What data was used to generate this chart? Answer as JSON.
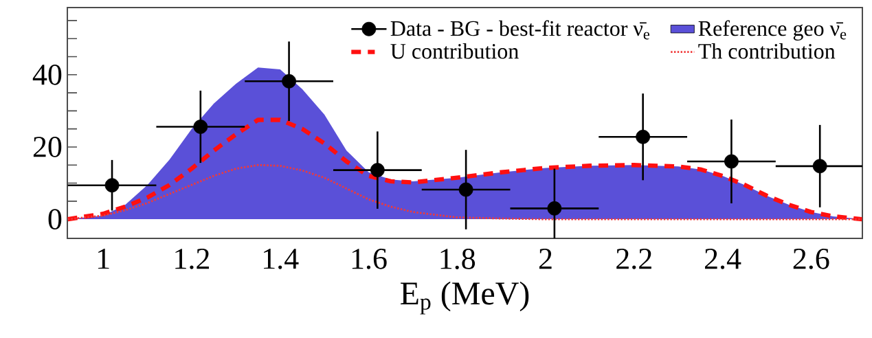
{
  "chart_data": {
    "type": "line",
    "xlabel": "E$_{p}$ (MeV)",
    "xlim": [
      0.919,
      2.716
    ],
    "ylim": [
      -5.3,
      58.6
    ],
    "xticks": [
      1,
      1.2,
      1.4,
      1.6,
      1.8,
      2,
      2.2,
      2.4,
      2.6
    ],
    "yticks": [
      0,
      {
        "value": 5,
        "label": null
      },
      {
        "value": 10,
        "label": null
      },
      {
        "value": 15,
        "label": null
      },
      20,
      {
        "value": 25,
        "label": null
      },
      {
        "value": 30,
        "label": null
      },
      {
        "value": 35,
        "label": null
      },
      40,
      {
        "value": 45,
        "label": null
      },
      {
        "value": 50,
        "label": null
      },
      {
        "value": 55,
        "label": null
      }
    ],
    "legend": "top right",
    "series": [
      {
        "name": "Data - BG - best-fit reactor ν̄$_{e}$",
        "type": "scatter",
        "color": "#000000",
        "marker": "circle",
        "x": [
          1.02,
          1.22,
          1.42,
          1.62,
          1.82,
          2.02,
          2.22,
          2.42,
          2.62
        ],
        "values": [
          9.4,
          25.6,
          38.2,
          13.6,
          8.2,
          3.0,
          22.8,
          16.0,
          14.7
        ],
        "errors": [
          7,
          10,
          11,
          10.7,
          11,
          11,
          12,
          11.6,
          11.4
        ],
        "xerrors": [
          0.1,
          0.1,
          0.1,
          0.1,
          0.1,
          0.1,
          0.1,
          0.1,
          0.1
        ]
      },
      {
        "name": "Reference geo ν̄$_{e}$",
        "type": "area",
        "color": "#5a50d8",
        "x": [
          0.92,
          1.0,
          1.05,
          1.1,
          1.15,
          1.2,
          1.25,
          1.3,
          1.35,
          1.4,
          1.45,
          1.5,
          1.55,
          1.6,
          1.65,
          1.7,
          1.8,
          1.9,
          2.0,
          2.1,
          2.2,
          2.3,
          2.35,
          2.4,
          2.45,
          2.5,
          2.55,
          2.6,
          2.65,
          2.715
        ],
        "values": [
          0,
          1,
          4,
          9.5,
          16.5,
          25,
          32,
          37.5,
          42,
          41.5,
          36,
          29,
          19,
          13,
          11,
          10.5,
          11.5,
          13,
          14.2,
          14.8,
          15,
          14.6,
          13.8,
          12,
          9.5,
          6.5,
          4,
          2,
          0.8,
          0
        ]
      },
      {
        "name": "U contribution",
        "type": "line",
        "color": "#ff1010",
        "line_style": "dashed",
        "x": [
          0.92,
          1.0,
          1.05,
          1.1,
          1.15,
          1.2,
          1.25,
          1.3,
          1.35,
          1.4,
          1.45,
          1.5,
          1.55,
          1.6,
          1.65,
          1.7,
          1.8,
          1.9,
          2.0,
          2.1,
          2.2,
          2.3,
          2.35,
          2.4,
          2.45,
          2.5,
          2.55,
          2.6,
          2.65,
          2.715
        ],
        "values": [
          0,
          1.5,
          3.5,
          6,
          9.5,
          14,
          19,
          23.5,
          27.5,
          27.5,
          25,
          21,
          16,
          12,
          10.5,
          10.2,
          11.5,
          13,
          14.2,
          14.8,
          15,
          14.6,
          13.8,
          12,
          9.5,
          6.5,
          4,
          2,
          0.8,
          0
        ]
      },
      {
        "name": "Th contribution",
        "type": "line",
        "color": "#f03a3a",
        "line_style": "dotted",
        "x": [
          0.92,
          1.0,
          1.05,
          1.1,
          1.15,
          1.2,
          1.25,
          1.3,
          1.35,
          1.4,
          1.45,
          1.5,
          1.55,
          1.6,
          1.65,
          1.7,
          1.8,
          1.9,
          2.0,
          2.2,
          2.4,
          2.6,
          2.715
        ],
        "values": [
          0,
          1,
          2.5,
          4.5,
          7,
          9.5,
          12,
          14,
          15,
          14.8,
          13.5,
          11.5,
          8.5,
          5.5,
          3.5,
          2,
          0.5,
          0.2,
          0,
          0,
          0,
          0,
          0
        ]
      }
    ]
  }
}
